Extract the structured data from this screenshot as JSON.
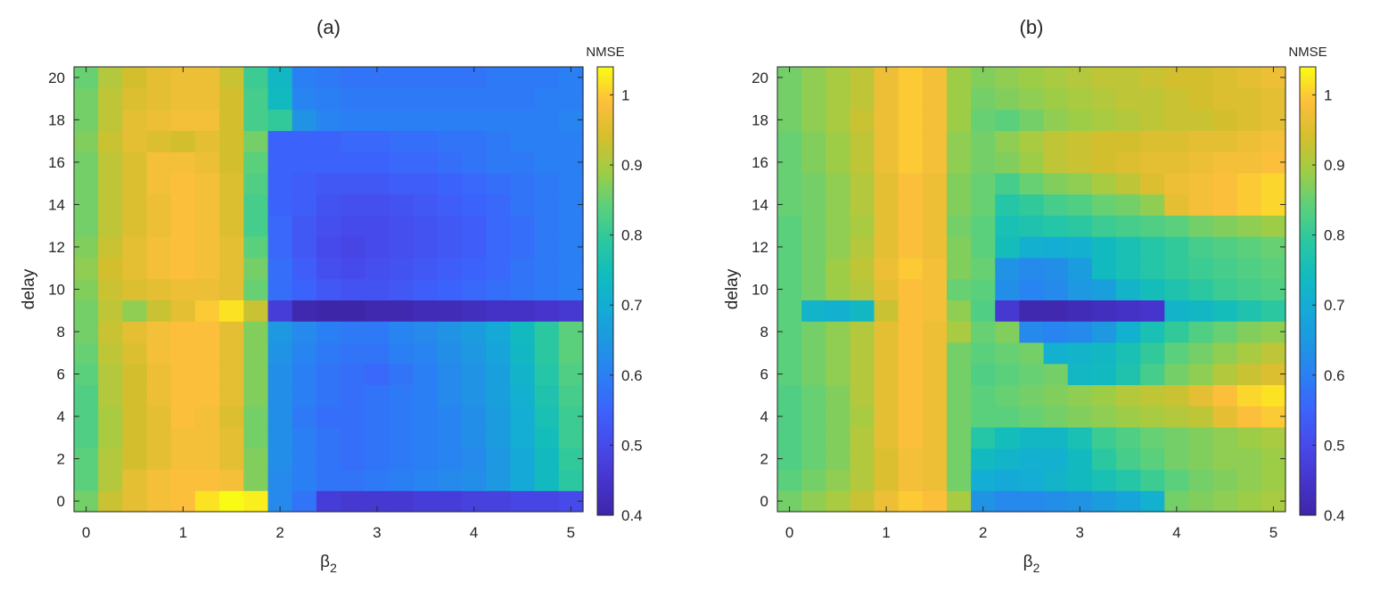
{
  "chart_data": [
    {
      "type": "heatmap",
      "title": "(a)",
      "xlabel": "β",
      "xlabel_sub": "2",
      "ylabel": "delay",
      "xlim": [
        -0.125,
        5.125
      ],
      "ylim": [
        -0.5,
        20.5
      ],
      "xticks": [
        0,
        1,
        2,
        3,
        4,
        5
      ],
      "xtick_labels": [
        "0",
        "1",
        "2",
        "3",
        "4",
        "5"
      ],
      "yticks": [
        0,
        2,
        4,
        6,
        8,
        10,
        12,
        14,
        16,
        18,
        20
      ],
      "ytick_labels": [
        "0",
        "2",
        "4",
        "6",
        "8",
        "10",
        "12",
        "14",
        "16",
        "18",
        "20"
      ],
      "x": [
        0,
        0.25,
        0.5,
        0.75,
        1,
        1.25,
        1.5,
        1.75,
        2,
        2.25,
        2.5,
        2.75,
        3,
        3.25,
        3.5,
        3.75,
        4,
        4.25,
        4.5,
        4.75,
        5
      ],
      "y": [
        0,
        1,
        2,
        3,
        4,
        5,
        6,
        7,
        8,
        9,
        10,
        11,
        12,
        13,
        14,
        15,
        16,
        17,
        18,
        19,
        20
      ],
      "colorbar": {
        "label": "NMSE",
        "clim": [
          0.4,
          1.04
        ],
        "ticks": [
          0.4,
          0.5,
          0.6,
          0.7,
          0.8,
          0.9,
          1
        ],
        "tick_labels": [
          "0.4",
          "0.5",
          "0.6",
          "0.7",
          "0.8",
          "0.9",
          "1"
        ],
        "colormap": "parula"
      },
      "z": [
        [
          0.86,
          0.93,
          0.96,
          0.98,
          0.99,
          1.02,
          1.04,
          1.03,
          0.62,
          0.58,
          0.47,
          0.46,
          0.46,
          0.46,
          0.47,
          0.47,
          0.48,
          0.48,
          0.49,
          0.49,
          0.5
        ],
        [
          0.84,
          0.91,
          0.96,
          0.98,
          0.99,
          0.99,
          0.98,
          0.87,
          0.62,
          0.6,
          0.58,
          0.58,
          0.59,
          0.6,
          0.61,
          0.62,
          0.63,
          0.65,
          0.69,
          0.74,
          0.79
        ],
        [
          0.84,
          0.91,
          0.94,
          0.96,
          0.98,
          0.98,
          0.96,
          0.87,
          0.63,
          0.6,
          0.58,
          0.57,
          0.58,
          0.59,
          0.6,
          0.61,
          0.62,
          0.65,
          0.69,
          0.74,
          0.8
        ],
        [
          0.83,
          0.9,
          0.94,
          0.96,
          0.98,
          0.98,
          0.96,
          0.86,
          0.63,
          0.6,
          0.58,
          0.57,
          0.58,
          0.59,
          0.6,
          0.61,
          0.63,
          0.66,
          0.7,
          0.75,
          0.81
        ],
        [
          0.83,
          0.9,
          0.94,
          0.96,
          0.99,
          0.98,
          0.95,
          0.86,
          0.63,
          0.59,
          0.57,
          0.57,
          0.58,
          0.59,
          0.6,
          0.61,
          0.63,
          0.66,
          0.7,
          0.76,
          0.81
        ],
        [
          0.83,
          0.91,
          0.94,
          0.97,
          0.99,
          0.99,
          0.96,
          0.87,
          0.63,
          0.6,
          0.58,
          0.57,
          0.58,
          0.59,
          0.6,
          0.62,
          0.64,
          0.67,
          0.71,
          0.77,
          0.82
        ],
        [
          0.84,
          0.91,
          0.94,
          0.97,
          0.99,
          0.99,
          0.96,
          0.87,
          0.63,
          0.6,
          0.58,
          0.57,
          0.56,
          0.58,
          0.6,
          0.62,
          0.64,
          0.67,
          0.72,
          0.78,
          0.83
        ],
        [
          0.85,
          0.92,
          0.95,
          0.98,
          0.99,
          0.99,
          0.96,
          0.87,
          0.64,
          0.61,
          0.59,
          0.58,
          0.58,
          0.6,
          0.61,
          0.63,
          0.65,
          0.68,
          0.73,
          0.79,
          0.84
        ],
        [
          0.86,
          0.93,
          0.96,
          0.98,
          0.99,
          0.99,
          0.96,
          0.87,
          0.65,
          0.62,
          0.6,
          0.59,
          0.59,
          0.61,
          0.62,
          0.64,
          0.66,
          0.69,
          0.74,
          0.79,
          0.84
        ],
        [
          0.86,
          0.92,
          0.88,
          0.93,
          0.96,
          1.0,
          1.02,
          0.93,
          0.47,
          0.41,
          0.4,
          0.4,
          0.41,
          0.41,
          0.42,
          0.42,
          0.43,
          0.44,
          0.44,
          0.45,
          0.46
        ],
        [
          0.87,
          0.93,
          0.95,
          0.96,
          0.97,
          0.97,
          0.96,
          0.85,
          0.57,
          0.55,
          0.53,
          0.52,
          0.52,
          0.53,
          0.54,
          0.55,
          0.56,
          0.57,
          0.58,
          0.59,
          0.6
        ],
        [
          0.88,
          0.94,
          0.96,
          0.98,
          0.99,
          0.98,
          0.96,
          0.86,
          0.57,
          0.54,
          0.51,
          0.5,
          0.51,
          0.52,
          0.53,
          0.54,
          0.55,
          0.56,
          0.58,
          0.59,
          0.6
        ],
        [
          0.87,
          0.93,
          0.96,
          0.98,
          0.99,
          0.98,
          0.96,
          0.84,
          0.56,
          0.53,
          0.5,
          0.49,
          0.5,
          0.51,
          0.52,
          0.53,
          0.54,
          0.56,
          0.57,
          0.59,
          0.6
        ],
        [
          0.86,
          0.92,
          0.95,
          0.97,
          0.99,
          0.98,
          0.95,
          0.82,
          0.56,
          0.53,
          0.51,
          0.5,
          0.5,
          0.51,
          0.52,
          0.53,
          0.54,
          0.56,
          0.57,
          0.59,
          0.6
        ],
        [
          0.86,
          0.92,
          0.95,
          0.97,
          0.99,
          0.98,
          0.95,
          0.82,
          0.55,
          0.54,
          0.52,
          0.51,
          0.51,
          0.52,
          0.53,
          0.54,
          0.55,
          0.56,
          0.58,
          0.59,
          0.6
        ],
        [
          0.86,
          0.92,
          0.95,
          0.98,
          0.99,
          0.98,
          0.95,
          0.83,
          0.55,
          0.54,
          0.53,
          0.53,
          0.53,
          0.54,
          0.54,
          0.55,
          0.56,
          0.57,
          0.58,
          0.59,
          0.6
        ],
        [
          0.86,
          0.92,
          0.95,
          0.98,
          0.98,
          0.97,
          0.94,
          0.84,
          0.55,
          0.55,
          0.55,
          0.55,
          0.55,
          0.56,
          0.56,
          0.57,
          0.58,
          0.59,
          0.59,
          0.6,
          0.6
        ],
        [
          0.87,
          0.93,
          0.96,
          0.95,
          0.94,
          0.96,
          0.94,
          0.86,
          0.55,
          0.55,
          0.55,
          0.56,
          0.56,
          0.57,
          0.57,
          0.58,
          0.58,
          0.59,
          0.6,
          0.6,
          0.6
        ],
        [
          0.86,
          0.92,
          0.96,
          0.97,
          0.98,
          0.98,
          0.94,
          0.82,
          0.8,
          0.64,
          0.61,
          0.6,
          0.6,
          0.6,
          0.6,
          0.6,
          0.6,
          0.6,
          0.6,
          0.6,
          0.61
        ],
        [
          0.86,
          0.92,
          0.95,
          0.96,
          0.97,
          0.97,
          0.94,
          0.82,
          0.74,
          0.61,
          0.6,
          0.59,
          0.59,
          0.59,
          0.59,
          0.59,
          0.59,
          0.59,
          0.59,
          0.6,
          0.6
        ],
        [
          0.85,
          0.91,
          0.94,
          0.96,
          0.97,
          0.97,
          0.93,
          0.81,
          0.73,
          0.6,
          0.59,
          0.58,
          0.58,
          0.58,
          0.58,
          0.58,
          0.58,
          0.59,
          0.59,
          0.59,
          0.6
        ]
      ]
    },
    {
      "type": "heatmap",
      "title": "(b)",
      "xlabel": "β",
      "xlabel_sub": "2",
      "ylabel": "delay",
      "xlim": [
        -0.125,
        5.125
      ],
      "ylim": [
        -0.5,
        20.5
      ],
      "xticks": [
        0,
        1,
        2,
        3,
        4,
        5
      ],
      "xtick_labels": [
        "0",
        "1",
        "2",
        "3",
        "4",
        "5"
      ],
      "yticks": [
        0,
        2,
        4,
        6,
        8,
        10,
        12,
        14,
        16,
        18,
        20
      ],
      "ytick_labels": [
        "0",
        "2",
        "4",
        "6",
        "8",
        "10",
        "12",
        "14",
        "16",
        "18",
        "20"
      ],
      "x": [
        0,
        0.25,
        0.5,
        0.75,
        1,
        1.25,
        1.5,
        1.75,
        2,
        2.25,
        2.5,
        2.75,
        3,
        3.25,
        3.5,
        3.75,
        4,
        4.25,
        4.5,
        4.75,
        5
      ],
      "y": [
        0,
        1,
        2,
        3,
        4,
        5,
        6,
        7,
        8,
        9,
        10,
        11,
        12,
        13,
        14,
        15,
        16,
        17,
        18,
        19,
        20
      ],
      "colorbar": {
        "label": "NMSE",
        "clim": [
          0.4,
          1.04
        ],
        "ticks": [
          0.4,
          0.5,
          0.6,
          0.7,
          0.8,
          0.9,
          1
        ],
        "tick_labels": [
          "0.4",
          "0.5",
          "0.6",
          "0.7",
          "0.8",
          "0.9",
          "1"
        ],
        "colormap": "parula"
      },
      "z": [
        [
          0.86,
          0.88,
          0.9,
          0.93,
          0.97,
          1.0,
          0.99,
          0.9,
          0.64,
          0.62,
          0.62,
          0.63,
          0.64,
          0.66,
          0.68,
          0.71,
          0.86,
          0.87,
          0.88,
          0.89,
          0.9
        ],
        [
          0.84,
          0.86,
          0.88,
          0.91,
          0.95,
          0.98,
          0.97,
          0.86,
          0.7,
          0.69,
          0.7,
          0.72,
          0.74,
          0.76,
          0.78,
          0.81,
          0.84,
          0.86,
          0.87,
          0.88,
          0.89
        ],
        [
          0.83,
          0.85,
          0.87,
          0.91,
          0.95,
          0.98,
          0.97,
          0.86,
          0.74,
          0.72,
          0.71,
          0.71,
          0.74,
          0.79,
          0.82,
          0.84,
          0.86,
          0.87,
          0.88,
          0.88,
          0.89
        ],
        [
          0.83,
          0.85,
          0.87,
          0.91,
          0.96,
          0.99,
          0.97,
          0.86,
          0.78,
          0.75,
          0.73,
          0.73,
          0.76,
          0.81,
          0.83,
          0.85,
          0.86,
          0.87,
          0.88,
          0.89,
          0.9
        ],
        [
          0.83,
          0.85,
          0.87,
          0.9,
          0.96,
          0.99,
          0.97,
          0.86,
          0.84,
          0.84,
          0.85,
          0.86,
          0.87,
          0.88,
          0.89,
          0.9,
          0.91,
          0.92,
          0.96,
          0.99,
          1.0
        ],
        [
          0.83,
          0.85,
          0.87,
          0.91,
          0.96,
          0.99,
          0.97,
          0.86,
          0.84,
          0.85,
          0.86,
          0.87,
          0.88,
          0.89,
          0.91,
          0.92,
          0.93,
          0.96,
          0.99,
          1.01,
          1.02
        ],
        [
          0.84,
          0.86,
          0.88,
          0.91,
          0.96,
          0.99,
          0.97,
          0.86,
          0.83,
          0.84,
          0.85,
          0.86,
          0.73,
          0.74,
          0.77,
          0.82,
          0.86,
          0.88,
          0.91,
          0.93,
          0.95
        ],
        [
          0.84,
          0.86,
          0.88,
          0.91,
          0.96,
          0.99,
          0.97,
          0.86,
          0.84,
          0.85,
          0.86,
          0.71,
          0.72,
          0.73,
          0.76,
          0.8,
          0.84,
          0.86,
          0.88,
          0.9,
          0.92
        ],
        [
          0.84,
          0.86,
          0.88,
          0.91,
          0.96,
          0.99,
          0.97,
          0.9,
          0.85,
          0.87,
          0.62,
          0.61,
          0.62,
          0.65,
          0.71,
          0.76,
          0.8,
          0.83,
          0.85,
          0.87,
          0.88
        ],
        [
          0.84,
          0.72,
          0.71,
          0.73,
          0.93,
          0.99,
          0.98,
          0.88,
          0.83,
          0.46,
          0.41,
          0.41,
          0.42,
          0.43,
          0.44,
          0.45,
          0.72,
          0.73,
          0.75,
          0.77,
          0.79
        ],
        [
          0.84,
          0.86,
          0.89,
          0.91,
          0.96,
          0.99,
          0.98,
          0.85,
          0.84,
          0.63,
          0.61,
          0.62,
          0.65,
          0.67,
          0.72,
          0.75,
          0.77,
          0.79,
          0.81,
          0.82,
          0.83
        ],
        [
          0.84,
          0.86,
          0.89,
          0.92,
          0.97,
          1.0,
          0.98,
          0.87,
          0.85,
          0.64,
          0.62,
          0.63,
          0.66,
          0.74,
          0.76,
          0.78,
          0.8,
          0.81,
          0.82,
          0.83,
          0.84
        ],
        [
          0.84,
          0.86,
          0.88,
          0.91,
          0.96,
          0.99,
          0.97,
          0.87,
          0.84,
          0.75,
          0.71,
          0.7,
          0.71,
          0.74,
          0.76,
          0.78,
          0.8,
          0.82,
          0.83,
          0.84,
          0.85
        ],
        [
          0.84,
          0.86,
          0.88,
          0.9,
          0.96,
          0.99,
          0.97,
          0.86,
          0.84,
          0.76,
          0.77,
          0.78,
          0.79,
          0.81,
          0.82,
          0.83,
          0.84,
          0.86,
          0.87,
          0.88,
          0.89
        ],
        [
          0.85,
          0.86,
          0.88,
          0.91,
          0.96,
          0.99,
          0.97,
          0.87,
          0.85,
          0.78,
          0.8,
          0.82,
          0.83,
          0.85,
          0.86,
          0.88,
          0.96,
          0.98,
          0.99,
          1.0,
          1.01
        ],
        [
          0.85,
          0.86,
          0.88,
          0.91,
          0.96,
          0.99,
          0.97,
          0.87,
          0.85,
          0.82,
          0.85,
          0.87,
          0.88,
          0.9,
          0.92,
          0.95,
          0.97,
          0.98,
          0.99,
          1.0,
          1.01
        ],
        [
          0.85,
          0.87,
          0.89,
          0.92,
          0.97,
          1.0,
          0.98,
          0.88,
          0.86,
          0.87,
          0.89,
          0.92,
          0.93,
          0.94,
          0.95,
          0.96,
          0.96,
          0.97,
          0.98,
          0.98,
          0.99
        ],
        [
          0.85,
          0.87,
          0.89,
          0.92,
          0.97,
          1.0,
          0.98,
          0.88,
          0.86,
          0.88,
          0.9,
          0.92,
          0.93,
          0.94,
          0.94,
          0.95,
          0.95,
          0.96,
          0.96,
          0.97,
          0.98
        ],
        [
          0.86,
          0.88,
          0.9,
          0.93,
          0.97,
          1.0,
          0.98,
          0.89,
          0.85,
          0.84,
          0.86,
          0.88,
          0.89,
          0.9,
          0.91,
          0.92,
          0.93,
          0.93,
          0.94,
          0.95,
          0.96
        ],
        [
          0.86,
          0.88,
          0.9,
          0.92,
          0.97,
          1.0,
          0.98,
          0.89,
          0.86,
          0.87,
          0.88,
          0.89,
          0.9,
          0.91,
          0.92,
          0.92,
          0.93,
          0.94,
          0.95,
          0.95,
          0.96
        ],
        [
          0.86,
          0.88,
          0.9,
          0.92,
          0.97,
          1.0,
          0.98,
          0.89,
          0.87,
          0.88,
          0.89,
          0.9,
          0.91,
          0.92,
          0.92,
          0.93,
          0.94,
          0.94,
          0.95,
          0.96,
          0.97
        ]
      ]
    }
  ]
}
